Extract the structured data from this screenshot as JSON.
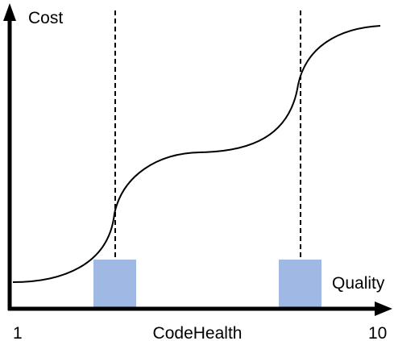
{
  "labels": {
    "y_axis": "Cost",
    "x_axis_right": "Quality",
    "x_min": "1",
    "x_max": "10",
    "x_axis_center": "CodeHealth"
  },
  "colors": {
    "axis": "#000000",
    "curve": "#000000",
    "marker_fill": "#a0b8e4"
  }
}
